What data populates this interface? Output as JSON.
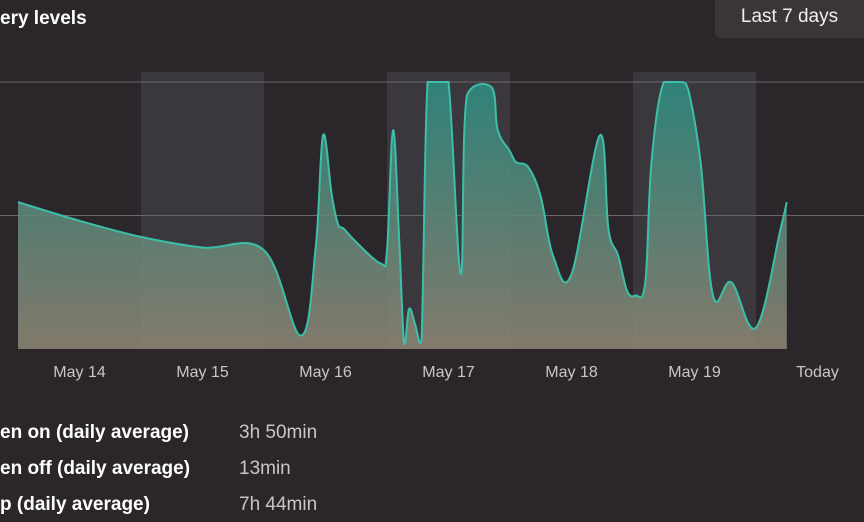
{
  "header": {
    "title": "ery levels",
    "range_label": "Last 7 days"
  },
  "colors": {
    "line": "#3cbfa8",
    "fill_top": "#2e8a7e",
    "fill_bottom": "#8a8272",
    "band": "#3a383d",
    "grid": "#6a6769"
  },
  "chart_data": {
    "type": "area",
    "title": "",
    "xlabel": "",
    "ylabel": "",
    "categories": [
      "May 14",
      "May 15",
      "May 16",
      "May 17",
      "May 18",
      "May 19",
      "Today"
    ],
    "shaded_days": [
      "May 15",
      "May 17",
      "May 19"
    ],
    "ylim": [
      0,
      100
    ],
    "gridlines": [
      50,
      100
    ],
    "x": [
      0.0,
      0.5,
      1.0,
      1.5,
      2.0,
      2.3,
      2.42,
      2.48,
      2.55,
      2.6,
      2.65,
      2.75,
      2.95,
      3.0,
      3.05,
      3.1,
      3.14,
      3.18,
      3.23,
      3.28,
      3.33,
      3.42,
      3.5,
      3.6,
      3.65,
      3.85,
      3.9,
      4.0,
      4.05,
      4.15,
      4.25,
      4.35,
      4.5,
      4.73,
      4.8,
      4.88,
      4.95,
      5.02,
      5.1,
      5.15,
      5.25,
      5.4,
      5.45,
      5.55,
      5.65,
      5.8,
      6.0,
      6.2,
      6.25
    ],
    "y": [
      55,
      48,
      42,
      38,
      37,
      5,
      38,
      80,
      58,
      47,
      45,
      40,
      32,
      37,
      82,
      40,
      2,
      15,
      9,
      3,
      100,
      100,
      100,
      28,
      95,
      98,
      82,
      74,
      70,
      68,
      57,
      35,
      28,
      80,
      45,
      35,
      22,
      20,
      25,
      70,
      100,
      100,
      97,
      70,
      20,
      25,
      8,
      45,
      55
    ]
  },
  "stats": [
    {
      "label": "en on (daily average)",
      "value": "3h 50min"
    },
    {
      "label": "en off (daily average)",
      "value": "13min"
    },
    {
      "label": "p (daily average)",
      "value": "7h 44min"
    }
  ]
}
